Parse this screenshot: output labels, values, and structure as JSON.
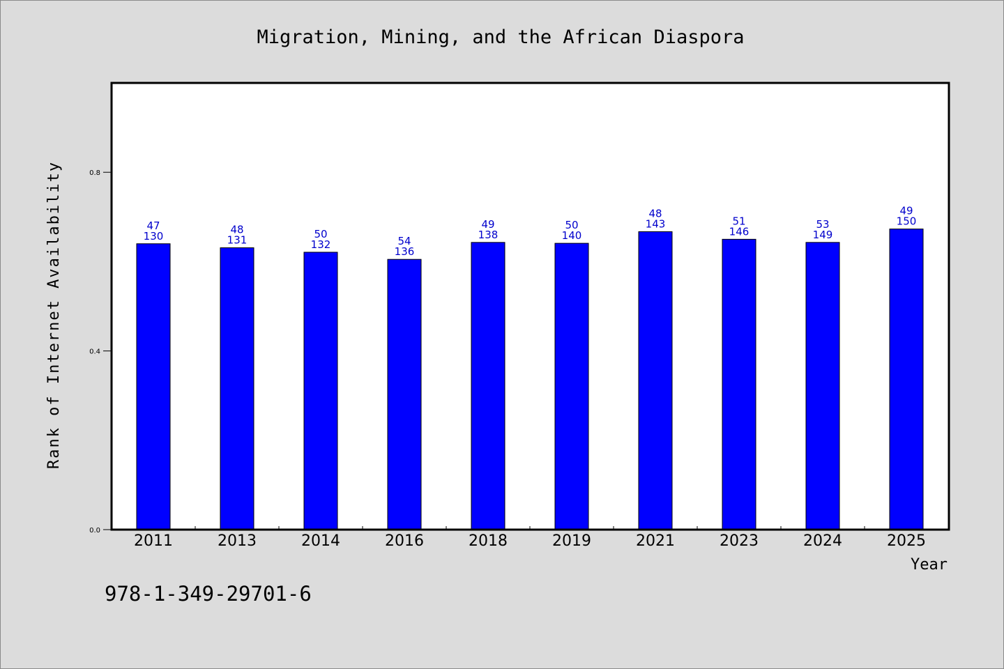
{
  "chart_data": {
    "type": "bar",
    "title": "Migration, Mining, and the African Diaspora",
    "xlabel": "Year",
    "ylabel": "Rank of Internet Availability",
    "categories": [
      "2011",
      "2013",
      "2014",
      "2016",
      "2018",
      "2019",
      "2021",
      "2023",
      "2024",
      "2025"
    ],
    "values": [
      0.64,
      0.631,
      0.621,
      0.605,
      0.643,
      0.641,
      0.667,
      0.65,
      0.643,
      0.673
    ],
    "data_labels_top": [
      "47",
      "48",
      "50",
      "54",
      "49",
      "50",
      "48",
      "51",
      "53",
      "49"
    ],
    "data_labels_bottom": [
      "130",
      "131",
      "132",
      "136",
      "138",
      "140",
      "143",
      "146",
      "149",
      "150"
    ],
    "ylim": [
      0,
      1.0
    ],
    "yticks": [
      0.0,
      0.4,
      0.8
    ],
    "ytick_labels": [
      "0.0",
      "0.4",
      "0.8"
    ],
    "bar_color": "#0000ff",
    "label_color": "#0000cc",
    "grid": false,
    "legend": "none"
  },
  "annotation": "978-1-349-29701-6"
}
